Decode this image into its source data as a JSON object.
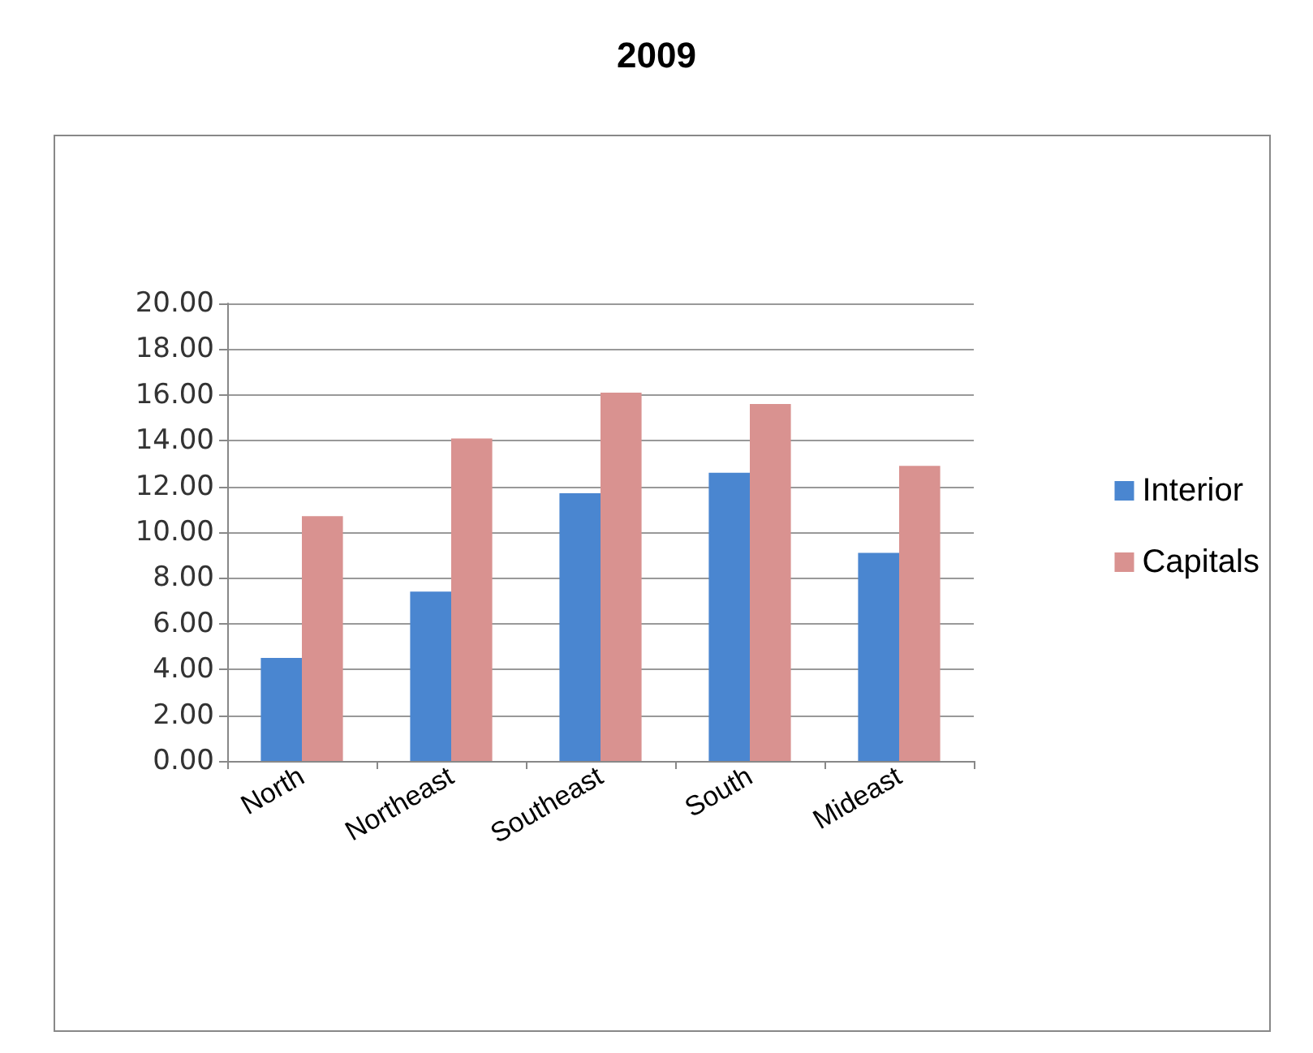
{
  "chart_data": {
    "type": "bar",
    "title": "2009",
    "categories": [
      "North",
      "Northeast",
      "Southeast",
      "South",
      "Mideast"
    ],
    "series": [
      {
        "name": "Interior",
        "color": "#4a86d0",
        "values": [
          4.5,
          7.4,
          11.7,
          12.6,
          9.1
        ]
      },
      {
        "name": "Capitals",
        "color": "#d99290",
        "values": [
          10.7,
          14.1,
          16.1,
          15.6,
          12.9
        ]
      }
    ],
    "ylim": [
      0,
      20
    ],
    "yticks": [
      {
        "value": 0,
        "label": "0.00"
      },
      {
        "value": 2,
        "label": "2.00"
      },
      {
        "value": 4,
        "label": "4.00"
      },
      {
        "value": 6,
        "label": "6.00"
      },
      {
        "value": 8,
        "label": "8.00"
      },
      {
        "value": 10,
        "label": "10.00"
      },
      {
        "value": 12,
        "label": "12.00"
      },
      {
        "value": 14,
        "label": "14.00"
      },
      {
        "value": 16,
        "label": "16.00"
      },
      {
        "value": 18,
        "label": "18.00"
      },
      {
        "value": 20,
        "label": "20.00"
      }
    ],
    "grid": "y",
    "legend": "right"
  }
}
